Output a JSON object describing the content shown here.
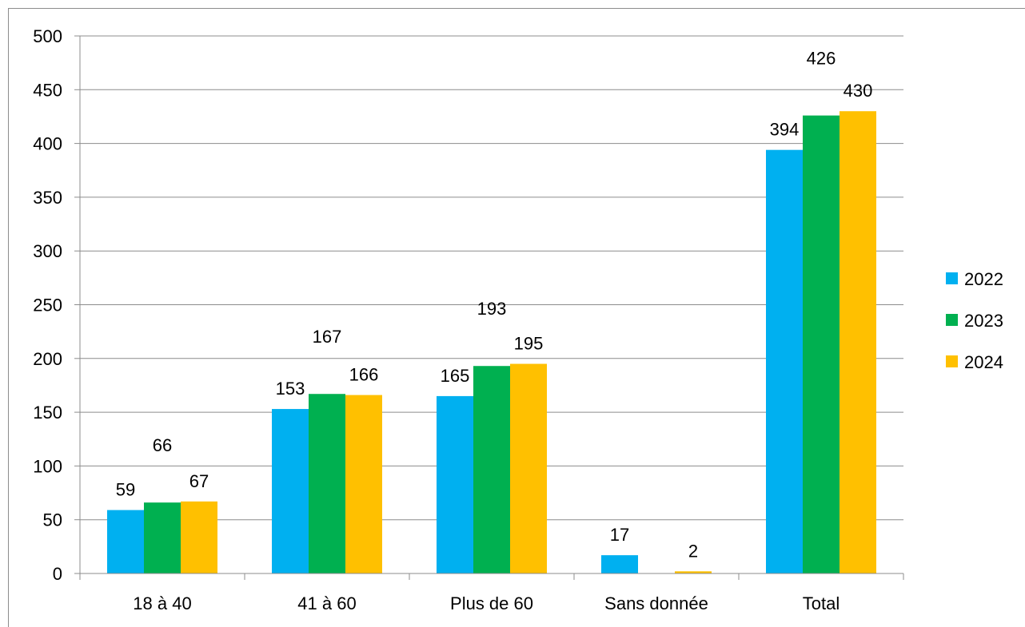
{
  "chart_data": {
    "type": "bar",
    "categories": [
      "18 à 40",
      "41 à 60",
      "Plus de 60",
      "Sans donnée",
      "Total"
    ],
    "series": [
      {
        "name": "2022",
        "color": "#00b0f0",
        "values": [
          59,
          153,
          165,
          17,
          394
        ]
      },
      {
        "name": "2023",
        "color": "#00b050",
        "values": [
          66,
          167,
          193,
          null,
          426
        ]
      },
      {
        "name": "2024",
        "color": "#ffc000",
        "values": [
          67,
          166,
          195,
          2,
          430
        ]
      }
    ],
    "ylim": [
      0,
      500
    ],
    "yticks": [
      0,
      50,
      100,
      150,
      200,
      250,
      300,
      350,
      400,
      450,
      500
    ],
    "grid": true,
    "legend_position": "right",
    "title": "",
    "xlabel": "",
    "ylabel": ""
  }
}
